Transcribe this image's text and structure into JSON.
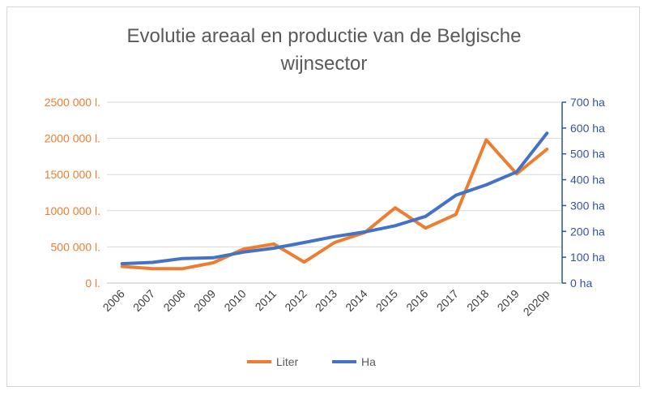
{
  "chart_data": {
    "type": "line",
    "title": "Evolutie areaal en productie van de Belgische wijnsector",
    "title_lines": [
      "Evolutie areaal en productie van de Belgische",
      "wijnsector"
    ],
    "categories": [
      "2006",
      "2007",
      "2008",
      "2009",
      "2010",
      "2011",
      "2012",
      "2013",
      "2014",
      "2015",
      "2016",
      "2017",
      "2018",
      "2019",
      "2020p"
    ],
    "series": [
      {
        "name": "Liter",
        "axis": "left",
        "color": "#ED7D31",
        "values": [
          230000,
          200000,
          200000,
          280000,
          470000,
          540000,
          290000,
          560000,
          700000,
          1040000,
          760000,
          950000,
          1980000,
          1510000,
          1850000
        ]
      },
      {
        "name": "Ha",
        "axis": "right",
        "color": "#4472C4",
        "values": [
          75,
          80,
          95,
          98,
          120,
          135,
          157,
          180,
          198,
          222,
          258,
          340,
          380,
          430,
          580
        ]
      }
    ],
    "y_left": {
      "ylim": [
        0,
        2500000
      ],
      "ticks": [
        0,
        500000,
        1000000,
        1500000,
        2000000,
        2500000
      ],
      "tick_labels": [
        "0 l.",
        "500 000 l.",
        "1000 000 l.",
        "1500 000 l.",
        "2000 000 l.",
        "2500 000 l."
      ],
      "color": "#ED7D31"
    },
    "y_right": {
      "ylim": [
        0,
        700
      ],
      "ticks": [
        0,
        100,
        200,
        300,
        400,
        500,
        600,
        700
      ],
      "tick_labels": [
        "0 ha",
        "100 ha",
        "200 ha",
        "300 ha",
        "400 ha",
        "500 ha",
        "600 ha",
        "700 ha"
      ],
      "color": "#2F5597"
    },
    "grid": true,
    "legend": "bottom"
  }
}
